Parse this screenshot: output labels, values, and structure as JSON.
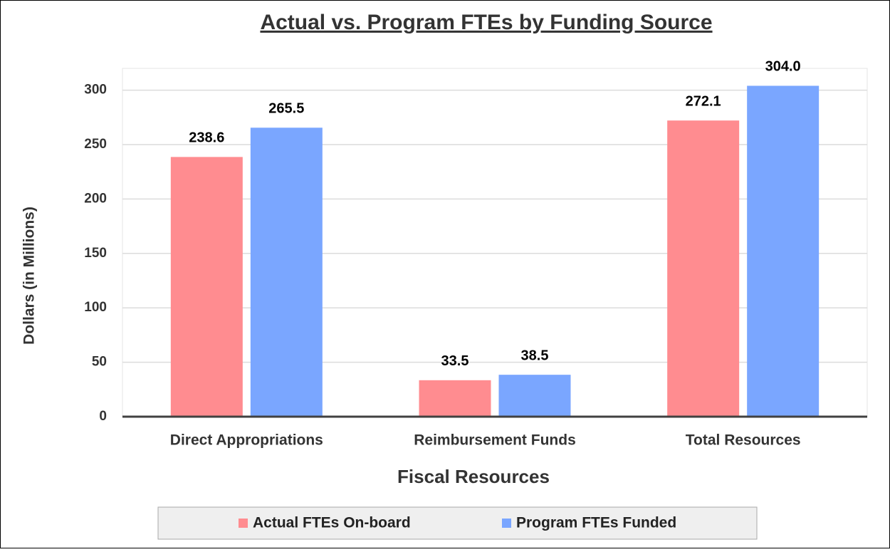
{
  "chart_data": {
    "type": "bar",
    "title": "Actual vs. Program FTEs by Funding Source",
    "x_label": "Fiscal Resources",
    "y_label": "Dollars (in Millions)",
    "categories": [
      "Direct Appropriations",
      "Reimbursement Funds",
      "Total Resources"
    ],
    "series": [
      {
        "name": "Actual FTEs On-board",
        "color": "#ff8c90",
        "values": [
          238.6,
          33.5,
          272.1
        ],
        "value_labels": [
          "238.6",
          "33.5",
          "272.1"
        ]
      },
      {
        "name": "Program FTEs Funded",
        "color": "#7aa6ff",
        "values": [
          265.5,
          38.5,
          304
        ],
        "value_labels": [
          "265.5",
          "38.5",
          "304.0"
        ]
      }
    ],
    "ylim": [
      0,
      320
    ],
    "yticks": [
      0,
      50,
      100,
      150,
      200,
      250,
      300
    ],
    "grid": true,
    "legend": "bottom"
  }
}
